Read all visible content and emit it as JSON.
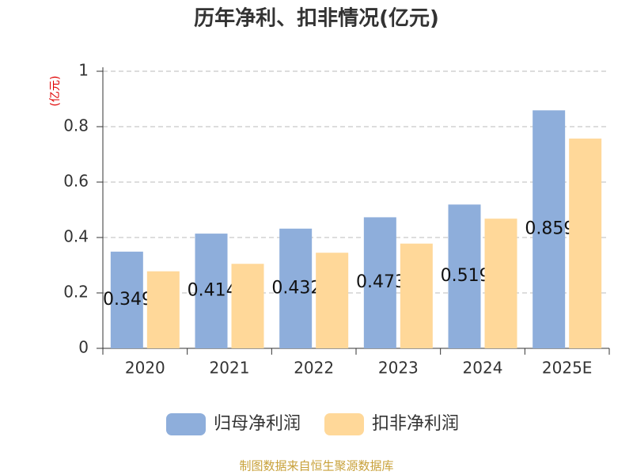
{
  "chart_data": {
    "type": "bar",
    "title": "历年净利、扣非情况(亿元)",
    "y_label": "(亿元)",
    "categories": [
      "2020",
      "2021",
      "2022",
      "2023",
      "2024",
      "2025E"
    ],
    "series": [
      {
        "name": "归母净利润",
        "color": "#8eaedb",
        "values": [
          0.349,
          0.414,
          0.432,
          0.473,
          0.519,
          0.859
        ]
      },
      {
        "name": "扣非净利润",
        "color": "#ffd899",
        "values": [
          0.278,
          0.305,
          0.345,
          0.378,
          0.468,
          0.757
        ]
      }
    ],
    "ylim": [
      0,
      1
    ],
    "yticks": [
      0,
      0.2,
      0.4,
      0.6,
      0.8,
      1
    ],
    "grid": true,
    "data_labels_series": 0,
    "source": "制图数据来自恒生聚源数据库"
  }
}
